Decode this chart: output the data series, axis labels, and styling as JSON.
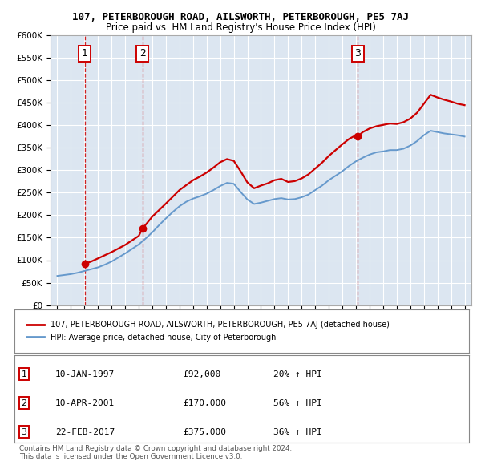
{
  "title": "107, PETERBOROUGH ROAD, AILSWORTH, PETERBOROUGH, PE5 7AJ",
  "subtitle": "Price paid vs. HM Land Registry's House Price Index (HPI)",
  "background_color": "#dce6f1",
  "plot_bg_color": "#dce6f1",
  "ylim": [
    0,
    600000
  ],
  "yticks": [
    0,
    50000,
    100000,
    150000,
    200000,
    250000,
    300000,
    350000,
    400000,
    450000,
    500000,
    550000,
    600000
  ],
  "ytick_labels": [
    "£0",
    "£50K",
    "£100K",
    "£150K",
    "£200K",
    "£250K",
    "£300K",
    "£350K",
    "£400K",
    "£450K",
    "£500K",
    "£550K",
    "£600K"
  ],
  "xlim_start": 1994.5,
  "xlim_end": 2025.5,
  "sale_dates": [
    1997.03,
    2001.27,
    2017.13
  ],
  "sale_prices": [
    92000,
    170000,
    375000
  ],
  "sale_labels": [
    "1",
    "2",
    "3"
  ],
  "red_line_color": "#cc0000",
  "blue_line_color": "#6699cc",
  "marker_color": "#cc0000",
  "dashed_line_color": "#cc0000",
  "hpi_line": {
    "x": [
      1995,
      1995.5,
      1996,
      1996.5,
      1997,
      1997.5,
      1998,
      1998.5,
      1999,
      1999.5,
      2000,
      2000.5,
      2001,
      2001.5,
      2002,
      2002.5,
      2003,
      2003.5,
      2004,
      2004.5,
      2005,
      2005.5,
      2006,
      2006.5,
      2007,
      2007.5,
      2008,
      2008.5,
      2009,
      2009.5,
      2010,
      2010.5,
      2011,
      2011.5,
      2012,
      2012.5,
      2013,
      2013.5,
      2014,
      2014.5,
      2015,
      2015.5,
      2016,
      2016.5,
      2017,
      2017.5,
      2018,
      2018.5,
      2019,
      2019.5,
      2020,
      2020.5,
      2021,
      2021.5,
      2022,
      2022.5,
      2023,
      2023.5,
      2024,
      2024.5,
      2025
    ],
    "y": [
      65000,
      67000,
      69000,
      72000,
      76000,
      80000,
      84000,
      90000,
      97000,
      106000,
      115000,
      125000,
      135000,
      148000,
      162000,
      178000,
      193000,
      207000,
      220000,
      230000,
      237000,
      242000,
      248000,
      256000,
      265000,
      272000,
      270000,
      252000,
      235000,
      225000,
      228000,
      232000,
      236000,
      238000,
      235000,
      236000,
      240000,
      246000,
      256000,
      266000,
      278000,
      288000,
      298000,
      310000,
      320000,
      328000,
      335000,
      340000,
      342000,
      345000,
      345000,
      348000,
      355000,
      365000,
      378000,
      388000,
      385000,
      382000,
      380000,
      378000,
      375000
    ]
  },
  "property_line": {
    "x": [
      1997.03,
      1997.5,
      1998,
      1999,
      2000,
      2001,
      2001.27,
      2002,
      2003,
      2004,
      2005,
      2005.5,
      2006,
      2006.5,
      2007,
      2007.5,
      2008,
      2008.5,
      2009,
      2009.5,
      2010,
      2010.5,
      2011,
      2011.5,
      2012,
      2012.5,
      2013,
      2013.5,
      2014,
      2014.5,
      2015,
      2015.5,
      2016,
      2016.5,
      2017,
      2017.13,
      2017.5,
      2018,
      2018.5,
      2019,
      2019.5,
      2020,
      2020.5,
      2021,
      2021.5,
      2022,
      2022.5,
      2023,
      2023.5,
      2024,
      2024.5,
      2025
    ],
    "y": [
      92000,
      97000,
      104000,
      118000,
      134000,
      154000,
      170000,
      197000,
      226000,
      256000,
      278000,
      286000,
      295000,
      306000,
      318000,
      325000,
      321000,
      298000,
      273000,
      260000,
      266000,
      271000,
      278000,
      281000,
      274000,
      276000,
      282000,
      291000,
      304000,
      317000,
      332000,
      345000,
      358000,
      370000,
      378000,
      375000,
      385000,
      393000,
      398000,
      401000,
      404000,
      403000,
      407000,
      415000,
      428000,
      448000,
      468000,
      462000,
      457000,
      453000,
      448000,
      445000
    ]
  },
  "legend_red_label": "107, PETERBOROUGH ROAD, AILSWORTH, PETERBOROUGH, PE5 7AJ (detached house)",
  "legend_blue_label": "HPI: Average price, detached house, City of Peterborough",
  "transactions": [
    {
      "num": "1",
      "date": "10-JAN-1997",
      "price": "£92,000",
      "pct": "20% ↑ HPI"
    },
    {
      "num": "2",
      "date": "10-APR-2001",
      "price": "£170,000",
      "pct": "56% ↑ HPI"
    },
    {
      "num": "3",
      "date": "22-FEB-2017",
      "price": "£375,000",
      "pct": "36% ↑ HPI"
    }
  ],
  "footer": "Contains HM Land Registry data © Crown copyright and database right 2024.\nThis data is licensed under the Open Government Licence v3.0.",
  "grid_color": "#ffffff",
  "label_box_color": "#ffffff",
  "label_box_edge": "#cc0000"
}
